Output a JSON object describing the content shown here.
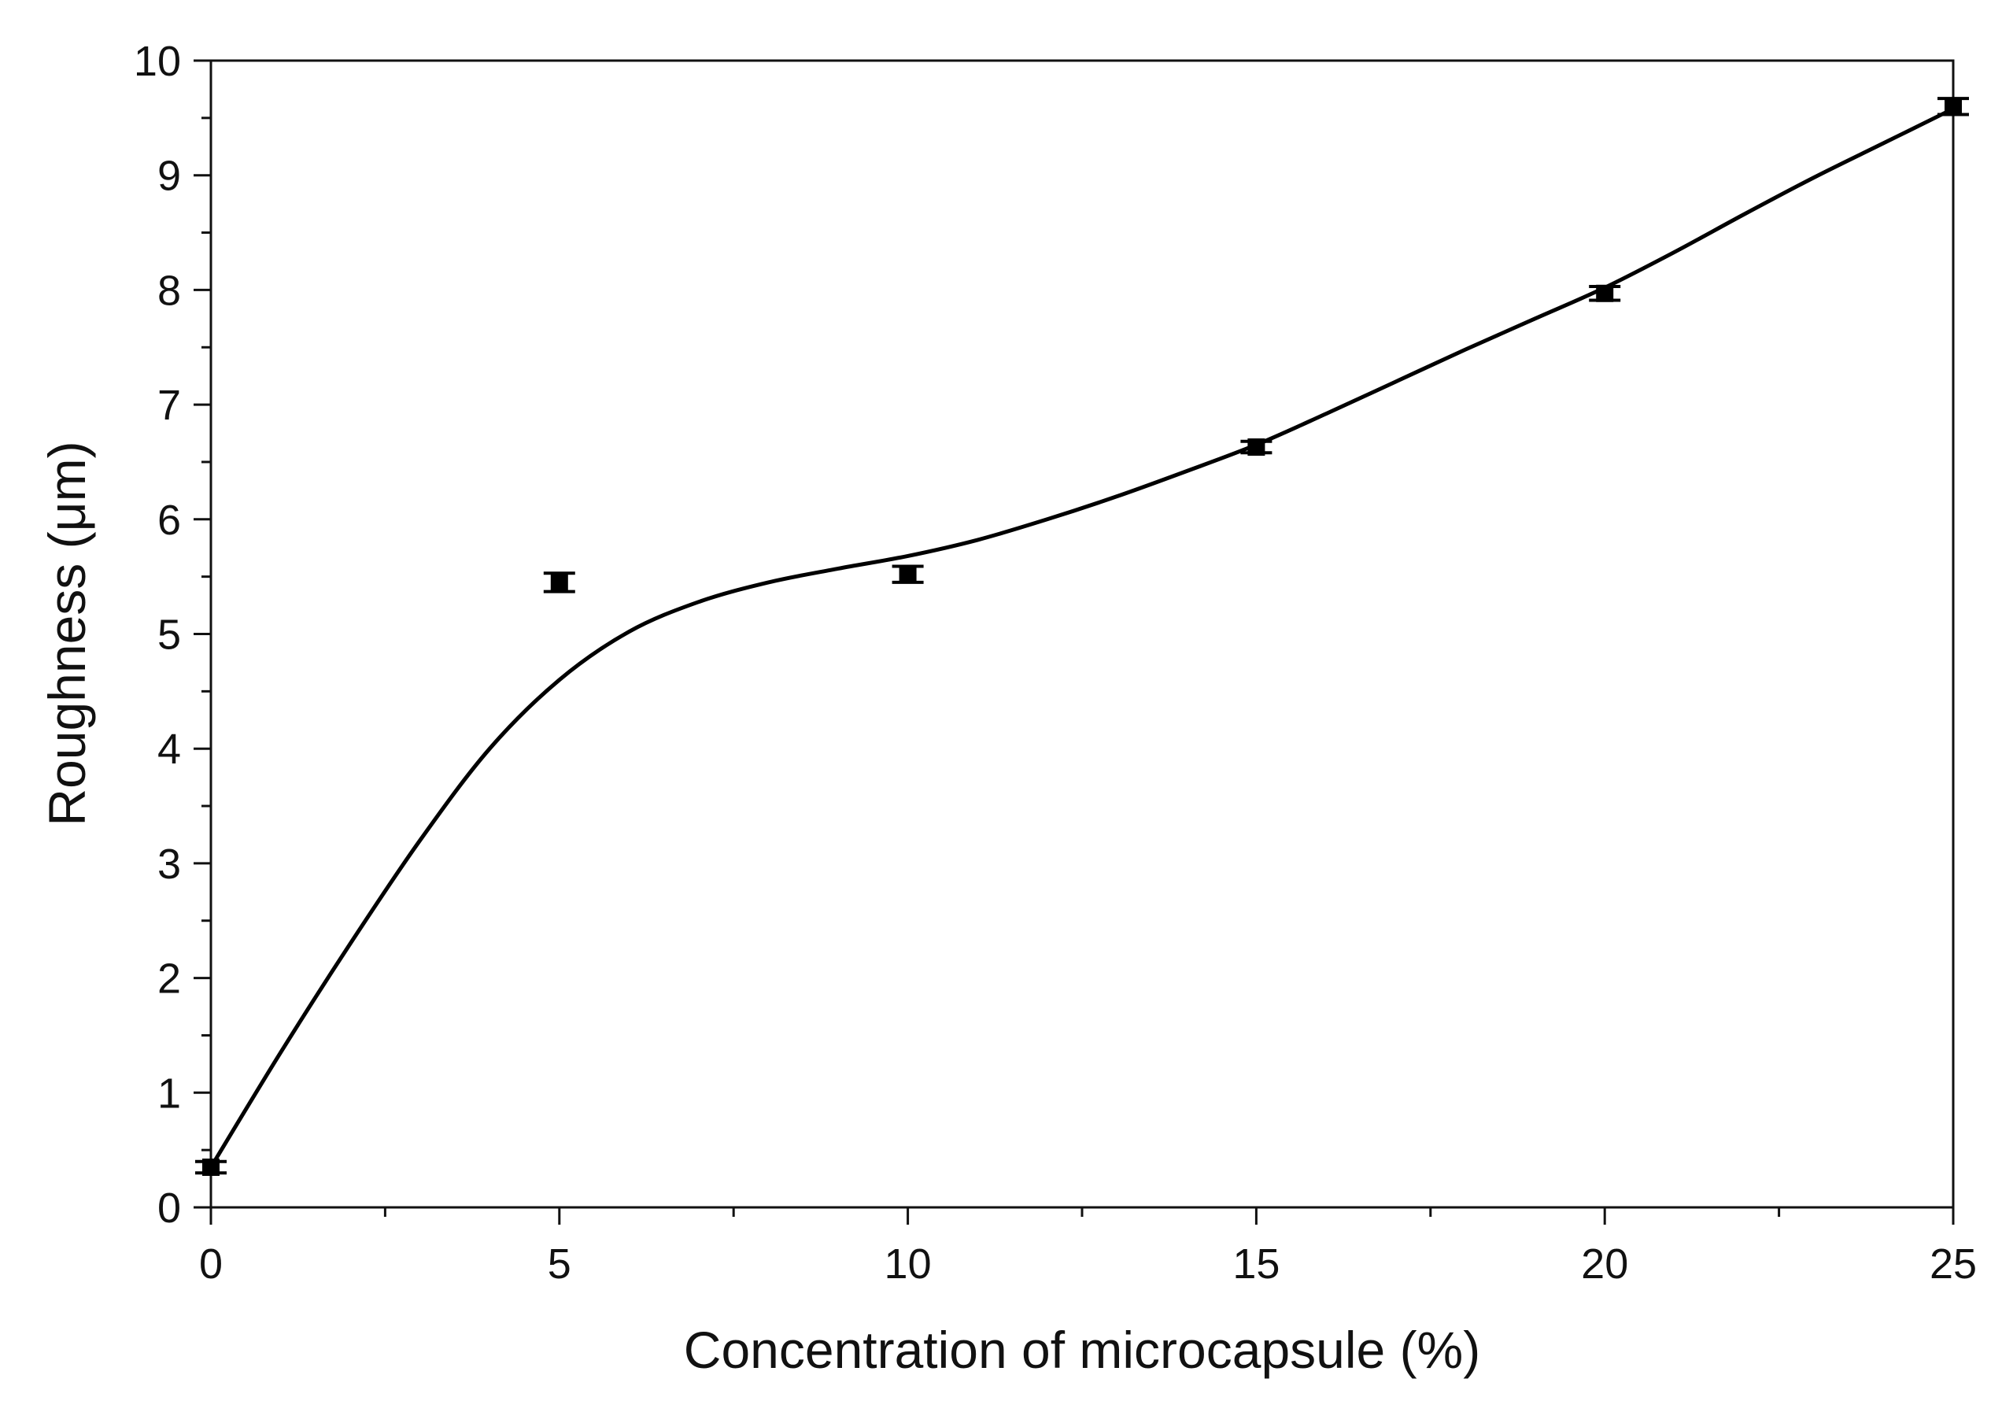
{
  "chart_data": {
    "type": "scatter",
    "title": "",
    "xlabel": "Concentration of microcapsule (%)",
    "ylabel": "Roughness (μm)",
    "xlim": [
      0,
      25
    ],
    "ylim": [
      0,
      10
    ],
    "xticks": [
      0,
      5,
      10,
      15,
      20,
      25
    ],
    "yticks": [
      0,
      1,
      2,
      3,
      4,
      5,
      6,
      7,
      8,
      9,
      10
    ],
    "grid": false,
    "series": [
      {
        "name": "Roughness",
        "x": [
          0,
          5,
          10,
          15,
          20,
          25
        ],
        "y": [
          0.35,
          5.45,
          5.52,
          6.63,
          7.97,
          9.6
        ],
        "error": [
          0.05,
          0.08,
          0.07,
          0.05,
          0.06,
          0.07
        ]
      }
    ],
    "fit_curve": {
      "name": "fitted curve",
      "x": [
        0,
        1,
        2,
        3,
        4,
        5,
        6,
        7,
        8,
        9,
        10,
        11,
        12,
        13,
        14,
        15,
        16,
        17,
        18,
        19,
        20,
        21,
        22,
        23,
        24,
        25
      ],
      "y": [
        0.35,
        1.35,
        2.3,
        3.2,
        4.0,
        4.6,
        5.02,
        5.28,
        5.45,
        5.57,
        5.68,
        5.82,
        6.0,
        6.2,
        6.42,
        6.65,
        6.92,
        7.2,
        7.48,
        7.75,
        8.02,
        8.33,
        8.66,
        8.98,
        9.28,
        9.58
      ]
    }
  }
}
